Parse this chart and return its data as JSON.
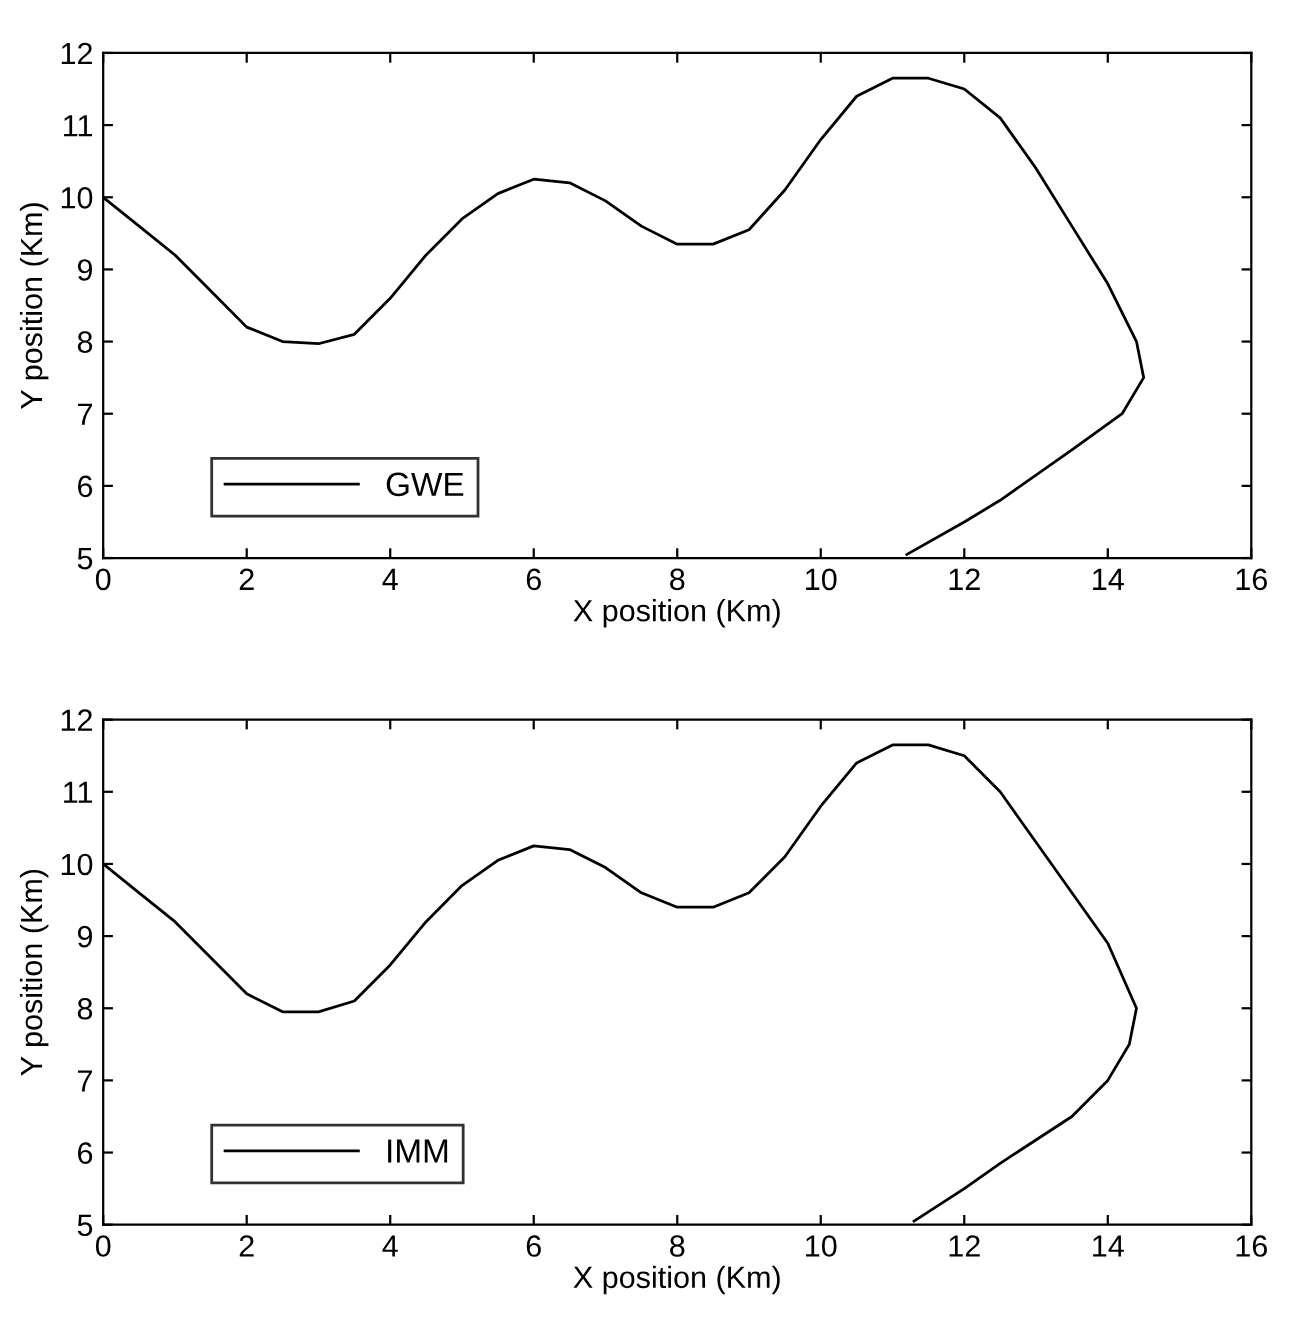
{
  "chart_data": [
    {
      "type": "line",
      "xlabel": "X position (Km)",
      "ylabel": "Y position (Km)",
      "xlim": [
        0,
        16
      ],
      "ylim": [
        5,
        12
      ],
      "xticks": [
        0,
        2,
        4,
        6,
        8,
        10,
        12,
        14,
        16
      ],
      "yticks": [
        5,
        6,
        7,
        8,
        9,
        10,
        11,
        12
      ],
      "legend": "bottom left",
      "grid": false,
      "series": [
        {
          "name": "GWE",
          "color": "#000000",
          "x": [
            0,
            0.5,
            1,
            1.5,
            2,
            2.5,
            3,
            3.5,
            4,
            4.5,
            5,
            5.5,
            6,
            6.5,
            7,
            7.5,
            8,
            8.5,
            9,
            9.5,
            10,
            10.5,
            11,
            11.5,
            12,
            12.5,
            13,
            13.5,
            14,
            14.4,
            14.5,
            14.2,
            13.5,
            12.5,
            12,
            11.2
          ],
          "values": [
            10,
            9.6,
            9.2,
            8.7,
            8.2,
            8.0,
            7.97,
            8.1,
            8.6,
            9.2,
            9.7,
            10.05,
            10.25,
            10.2,
            9.95,
            9.6,
            9.35,
            9.35,
            9.55,
            10.1,
            10.8,
            11.4,
            11.65,
            11.65,
            11.5,
            11.1,
            10.4,
            9.6,
            8.8,
            8.0,
            7.5,
            7.0,
            6.5,
            5.8,
            5.5,
            5.05
          ]
        }
      ]
    },
    {
      "type": "line",
      "xlabel": "X position (Km)",
      "ylabel": "Y position (Km)",
      "xlim": [
        0,
        16
      ],
      "ylim": [
        5,
        12
      ],
      "xticks": [
        0,
        2,
        4,
        6,
        8,
        10,
        12,
        14,
        16
      ],
      "yticks": [
        5,
        6,
        7,
        8,
        9,
        10,
        11,
        12
      ],
      "legend": "bottom left",
      "grid": false,
      "series": [
        {
          "name": "IMM",
          "color": "#000000",
          "x": [
            0,
            0.5,
            1,
            1.5,
            2,
            2.5,
            3,
            3.5,
            4,
            4.5,
            5,
            5.5,
            6,
            6.5,
            7,
            7.5,
            8,
            8.5,
            9,
            9.5,
            10,
            10.5,
            11,
            11.5,
            12,
            12.5,
            13,
            13.5,
            14,
            14.4,
            14.3,
            14.0,
            13.5,
            12.5,
            12,
            11.3
          ],
          "values": [
            10,
            9.6,
            9.2,
            8.7,
            8.2,
            7.95,
            7.95,
            8.1,
            8.6,
            9.2,
            9.7,
            10.05,
            10.25,
            10.2,
            9.95,
            9.6,
            9.4,
            9.4,
            9.6,
            10.1,
            10.8,
            11.4,
            11.65,
            11.65,
            11.5,
            11.0,
            10.3,
            9.6,
            8.9,
            8.0,
            7.5,
            7.0,
            6.5,
            5.85,
            5.5,
            5.05
          ]
        }
      ]
    }
  ]
}
